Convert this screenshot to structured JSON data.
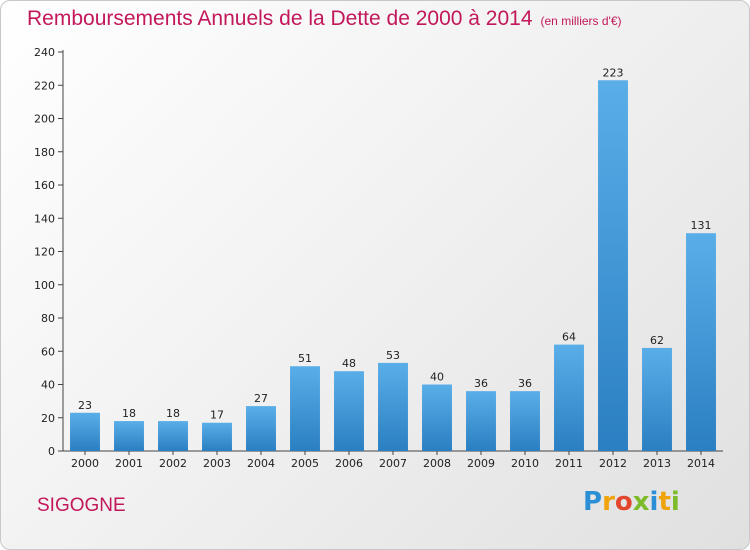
{
  "header": {
    "title": "Remboursements Annuels de la Dette de 2000 à 2014",
    "unit": "(en milliers d'€)"
  },
  "footer": {
    "commune": "SIGOGNE",
    "logo_text": "Proxiti"
  },
  "colors": {
    "title": "#c2185b",
    "bar_top": "#5aaee8",
    "bar_bottom": "#2a7fc2"
  },
  "chart_data": {
    "type": "bar",
    "title": "Remboursements Annuels de la Dette de 2000 à 2014",
    "categories": [
      "2000",
      "2001",
      "2002",
      "2003",
      "2004",
      "2005",
      "2006",
      "2007",
      "2008",
      "2009",
      "2010",
      "2011",
      "2012",
      "2013",
      "2014"
    ],
    "values": [
      23,
      18,
      18,
      17,
      27,
      51,
      48,
      53,
      40,
      36,
      36,
      64,
      223,
      62,
      131
    ],
    "ylim": [
      0,
      240
    ],
    "yticks": [
      0,
      20,
      40,
      60,
      80,
      100,
      120,
      140,
      160,
      180,
      200,
      220,
      240
    ],
    "xlabel": "",
    "ylabel": "",
    "grid": false
  }
}
